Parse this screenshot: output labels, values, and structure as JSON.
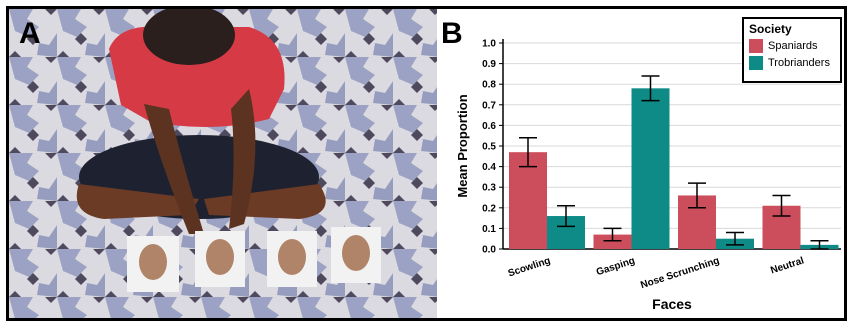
{
  "panels": {
    "a_label": "A",
    "b_label": "B"
  },
  "photo": {
    "subject": "child-seated-with-face-photos"
  },
  "chart_data": {
    "type": "bar",
    "xlabel": "Faces",
    "ylabel": "Mean Proportion",
    "ylim": [
      0,
      1.0
    ],
    "yticks": [
      "0.0",
      "0.1",
      "0.2",
      "0.3",
      "0.4",
      "0.5",
      "0.6",
      "0.7",
      "0.8",
      "0.9",
      "1.0"
    ],
    "grid": true,
    "categories": [
      "Scowling",
      "Gasping",
      "Nose Scrunching",
      "Neutral"
    ],
    "legend": {
      "title": "Society",
      "position": "top-right"
    },
    "series": [
      {
        "name": "Spaniards",
        "color": "#cc4e5c",
        "values": [
          0.47,
          0.07,
          0.26,
          0.21
        ],
        "err": [
          0.07,
          0.03,
          0.06,
          0.05
        ]
      },
      {
        "name": "Trobrianders",
        "color": "#0e8b86",
        "values": [
          0.16,
          0.78,
          0.05,
          0.02
        ],
        "err": [
          0.05,
          0.06,
          0.03,
          0.02
        ]
      }
    ]
  }
}
